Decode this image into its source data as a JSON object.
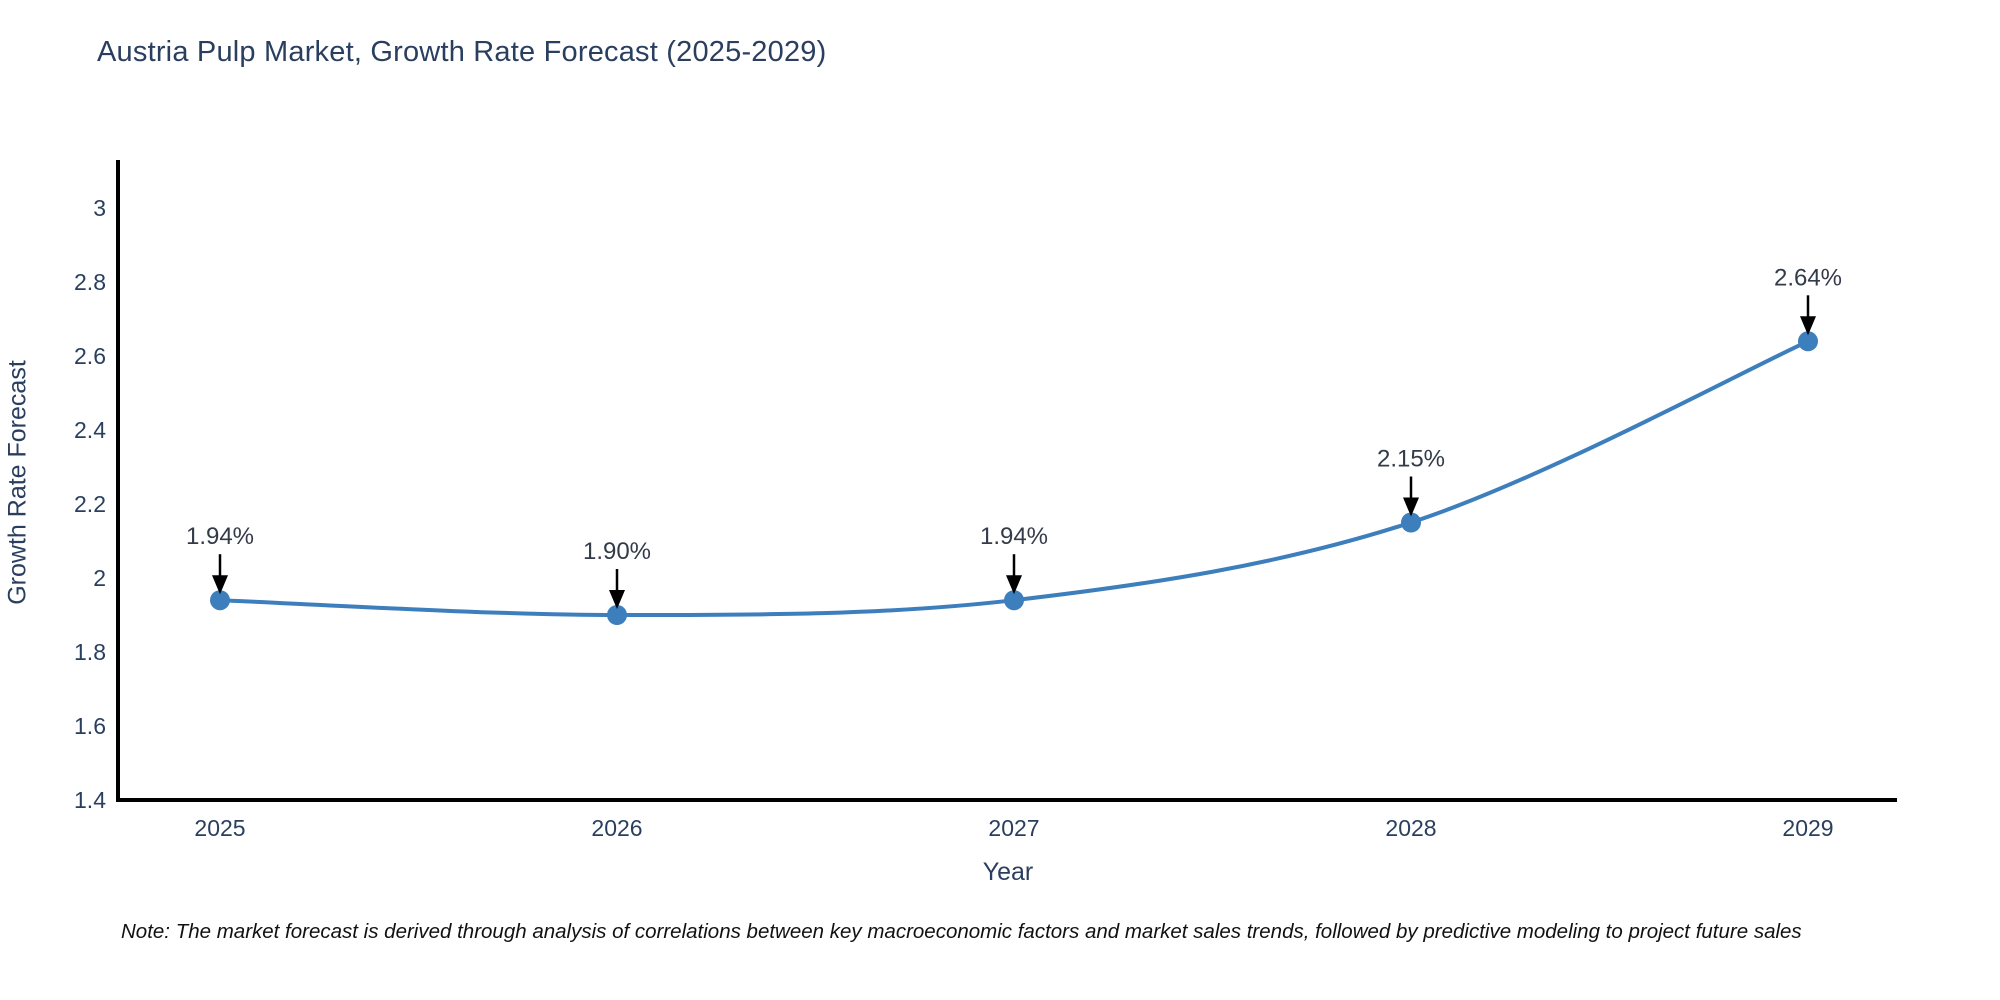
{
  "title": "Austria Pulp Market, Growth Rate Forecast (2025-2029)",
  "note": "Note: The market forecast is derived through analysis of correlations between key macroeconomic factors and market sales trends, followed by predictive modeling to project future sales",
  "colors": {
    "accent_line": "#3d7ebd",
    "marker": "#3d7ebd",
    "text": "#2a3f5f",
    "annotation_text": "#333b49",
    "axis_line": "#000000",
    "note_text": "#111111"
  },
  "chart_data": {
    "type": "line",
    "title": "Austria Pulp Market, Growth Rate Forecast (2025-2029)",
    "x": [
      2025,
      2026,
      2027,
      2028,
      2029
    ],
    "values": [
      1.94,
      1.9,
      1.94,
      2.15,
      2.64
    ],
    "point_labels": [
      "1.94%",
      "1.90%",
      "1.94%",
      "2.15%",
      "2.64%"
    ],
    "xlabel": "Year",
    "ylabel": "Growth Rate Forecast",
    "yticks": [
      1.4,
      1.6,
      1.8,
      2,
      2.2,
      2.4,
      2.6,
      2.8,
      3
    ],
    "ylim": [
      1.4,
      3.13
    ],
    "grid": false,
    "legend": "none",
    "line_shape": "spline",
    "annotations": "down-arrow-to-point"
  }
}
